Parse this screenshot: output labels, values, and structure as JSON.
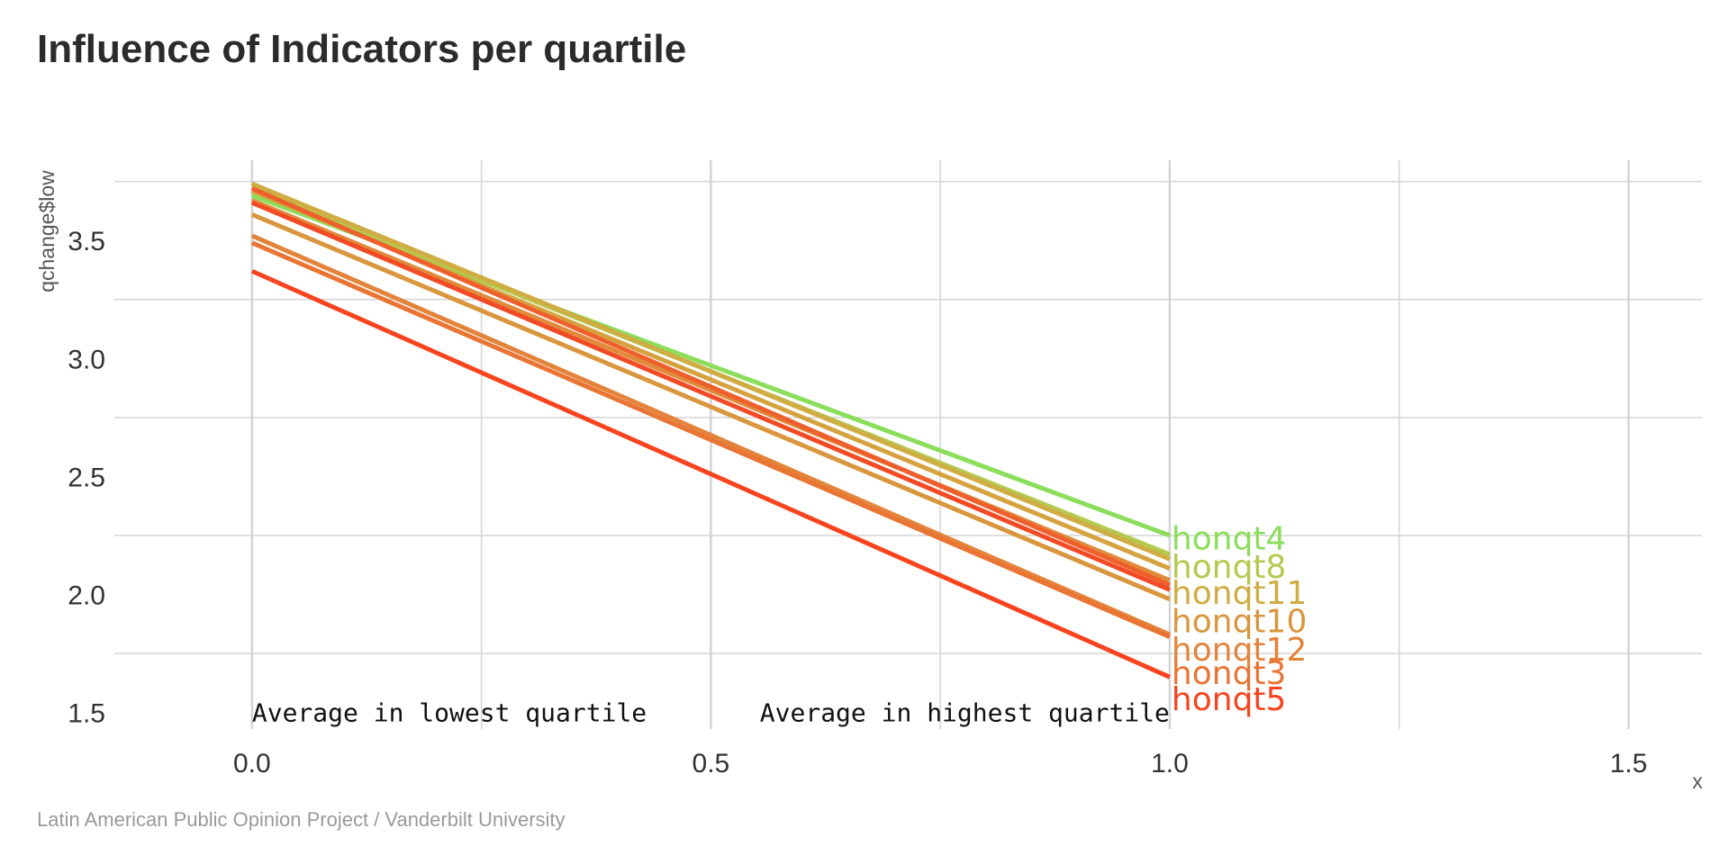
{
  "title": "Influence of Indicators per quartile",
  "caption": "Latin American Public Opinion Project / Vanderbilt University",
  "chart_data": {
    "type": "line",
    "xlabel": "x",
    "ylabel": "qchange$low",
    "xlim": [
      -0.15,
      1.58
    ],
    "ylim": [
      1.43,
      3.84
    ],
    "x_ticks": [
      "0.0",
      "0.5",
      "1.0",
      "1.5"
    ],
    "x_tick_values": [
      0,
      0.5,
      1.0,
      1.5
    ],
    "y_ticks": [
      "1.5",
      "2.0",
      "2.5",
      "3.0",
      "3.5"
    ],
    "y_tick_values": [
      1.5,
      2.0,
      2.5,
      3.0,
      3.5
    ],
    "grid": true,
    "annotations": [
      {
        "text": "Average in lowest quartile",
        "x": 0.0,
        "y": 1.5,
        "anchor": "start"
      },
      {
        "text": "Average in highest quartile",
        "x": 1.0,
        "y": 1.5,
        "anchor": "end"
      }
    ],
    "series": [
      {
        "name": "honqt4",
        "x": [
          0,
          1
        ],
        "values": [
          3.69,
          2.25
        ],
        "color": "#8ade5a"
      },
      {
        "name": "honqt8",
        "x": [
          0,
          1
        ],
        "values": [
          3.72,
          2.17
        ],
        "color": "#b4c94e"
      },
      {
        "name": "honqt11",
        "x": [
          0,
          1
        ],
        "values": [
          3.74,
          2.15
        ],
        "color": "#cfad43"
      },
      {
        "name": "",
        "x": [
          0,
          1
        ],
        "values": [
          3.71,
          2.11
        ],
        "color": "#d6a23e"
      },
      {
        "name": "",
        "x": [
          0,
          1
        ],
        "values": [
          3.67,
          2.06
        ],
        "color": "#e08a3a"
      },
      {
        "name": "",
        "x": [
          0,
          1
        ],
        "values": [
          3.72,
          2.04
        ],
        "color": "#ef5f2c"
      },
      {
        "name": "",
        "x": [
          0,
          1
        ],
        "values": [
          3.66,
          2.02
        ],
        "color": "#f24a24"
      },
      {
        "name": "honqt10",
        "x": [
          0,
          1
        ],
        "values": [
          3.61,
          1.98
        ],
        "color": "#d9963c"
      },
      {
        "name": "honqt12",
        "x": [
          0,
          1
        ],
        "values": [
          3.52,
          1.83
        ],
        "color": "#e3843a"
      },
      {
        "name": "honqt3",
        "x": [
          0,
          1
        ],
        "values": [
          3.49,
          1.82
        ],
        "color": "#ea7433"
      },
      {
        "name": "honqt5",
        "x": [
          0,
          1
        ],
        "values": [
          3.37,
          1.65
        ],
        "color": "#f7441e"
      }
    ],
    "label_y": {
      "honqt4": 2.24,
      "honqt8": 2.12,
      "honqt11": 2.01,
      "honqt10": 1.89,
      "honqt12": 1.77,
      "honqt3": 1.67,
      "honqt5": 1.56
    }
  }
}
